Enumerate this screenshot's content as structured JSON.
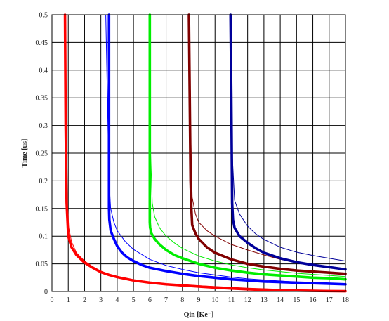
{
  "chart_data": {
    "type": "line",
    "title": "",
    "xlabel": "Qin [Ke⁻]",
    "ylabel": "Time [us]",
    "xlim": [
      0,
      18
    ],
    "ylim": [
      0,
      0.5
    ],
    "x_ticks": [
      0,
      1,
      2,
      3,
      4,
      5,
      6,
      7,
      8,
      9,
      10,
      11,
      12,
      13,
      14,
      15,
      16,
      17,
      18
    ],
    "y_ticks": [
      0,
      0.05,
      0.1,
      0.15,
      0.2,
      0.25,
      0.3,
      0.35,
      0.4,
      0.45,
      0.5
    ],
    "y_tick_labels": [
      "0",
      "0.05",
      "0.1",
      "0.15",
      "0.2",
      "0.25",
      "0.3",
      "0.35",
      "0.4",
      "0.45",
      "0.5"
    ],
    "grid": true,
    "legend": "none",
    "series": [
      {
        "color": "#ff0000",
        "width": "thick",
        "x": [
          0.8,
          0.82,
          0.84,
          0.86,
          0.88,
          0.9,
          0.95,
          1.0,
          1.2,
          1.5,
          2.0,
          2.5,
          3.0,
          3.5,
          4.0,
          5,
          6,
          7,
          8,
          9,
          10,
          11,
          12,
          13,
          14,
          15,
          16,
          17,
          18
        ],
        "y": [
          0.5,
          0.4,
          0.3,
          0.25,
          0.2,
          0.16,
          0.13,
          0.1,
          0.08,
          0.066,
          0.052,
          0.043,
          0.035,
          0.03,
          0.026,
          0.02,
          0.016,
          0.013,
          0.011,
          0.009,
          0.007,
          0.0055,
          0.004,
          0.003,
          0.0022,
          0.0016,
          0.0012,
          0.0008,
          0.0005
        ]
      },
      {
        "color": "#ff0000",
        "width": "thin",
        "x": [
          0.8,
          0.82,
          0.85,
          0.9,
          1.0,
          1.2,
          1.5,
          2.0,
          2.5,
          3.0,
          3.5,
          4.0,
          5,
          6,
          7,
          8,
          10,
          12,
          14,
          16,
          18
        ],
        "y": [
          0.5,
          0.35,
          0.25,
          0.17,
          0.12,
          0.09,
          0.07,
          0.055,
          0.045,
          0.037,
          0.031,
          0.027,
          0.021,
          0.017,
          0.014,
          0.012,
          0.009,
          0.006,
          0.004,
          0.0025,
          0.0015
        ]
      },
      {
        "color": "#0000ff",
        "width": "thick",
        "x": [
          3.5,
          3.5,
          3.52,
          3.6,
          3.8,
          4.0,
          4.3,
          4.6,
          5,
          5.5,
          6,
          7,
          8,
          9,
          10,
          11,
          12,
          13,
          14,
          15,
          16,
          17,
          18
        ],
        "y": [
          0.5,
          0.15,
          0.13,
          0.11,
          0.095,
          0.082,
          0.07,
          0.062,
          0.055,
          0.048,
          0.043,
          0.037,
          0.032,
          0.028,
          0.025,
          0.022,
          0.02,
          0.018,
          0.017,
          0.016,
          0.015,
          0.014,
          0.013
        ]
      },
      {
        "color": "#0000ff",
        "width": "thin",
        "x": [
          3.3,
          3.4,
          3.5,
          3.6,
          3.8,
          4.0,
          4.5,
          5,
          6,
          7,
          8,
          9,
          10,
          11,
          12,
          13,
          14,
          15,
          16,
          17,
          18
        ],
        "y": [
          0.5,
          0.35,
          0.2,
          0.15,
          0.125,
          0.11,
          0.09,
          0.076,
          0.058,
          0.047,
          0.04,
          0.034,
          0.03,
          0.026,
          0.023,
          0.021,
          0.019,
          0.017,
          0.016,
          0.015,
          0.014
        ]
      },
      {
        "color": "#00ee00",
        "width": "thick",
        "x": [
          6.0,
          6.0,
          6.02,
          6.1,
          6.3,
          6.6,
          7,
          7.5,
          8,
          9,
          10,
          11,
          12,
          13,
          14,
          15,
          16,
          17,
          18
        ],
        "y": [
          0.5,
          0.125,
          0.115,
          0.105,
          0.095,
          0.085,
          0.075,
          0.066,
          0.06,
          0.05,
          0.043,
          0.038,
          0.034,
          0.031,
          0.029,
          0.027,
          0.025,
          0.024,
          0.022
        ]
      },
      {
        "color": "#00ee00",
        "width": "thin",
        "x": [
          5.95,
          6.05,
          6.15,
          6.3,
          6.6,
          7,
          7.5,
          8,
          9,
          10,
          11,
          12,
          13,
          14,
          15,
          16,
          17,
          18
        ],
        "y": [
          0.5,
          0.25,
          0.16,
          0.135,
          0.115,
          0.1,
          0.088,
          0.078,
          0.064,
          0.055,
          0.048,
          0.043,
          0.039,
          0.036,
          0.033,
          0.031,
          0.029,
          0.027
        ]
      },
      {
        "color": "#800000",
        "width": "thick",
        "x": [
          8.4,
          8.45,
          8.5,
          8.55,
          8.6,
          8.8,
          9,
          9.5,
          10,
          11,
          12,
          13,
          14,
          15,
          16,
          17,
          18
        ],
        "y": [
          0.5,
          0.35,
          0.2,
          0.15,
          0.12,
          0.105,
          0.095,
          0.08,
          0.07,
          0.058,
          0.05,
          0.045,
          0.041,
          0.038,
          0.036,
          0.034,
          0.032
        ]
      },
      {
        "color": "#800000",
        "width": "thin",
        "x": [
          8.4,
          8.5,
          8.6,
          8.8,
          9,
          9.5,
          10,
          11,
          12,
          13,
          14,
          15,
          16,
          17,
          18
        ],
        "y": [
          0.5,
          0.3,
          0.17,
          0.14,
          0.125,
          0.11,
          0.1,
          0.085,
          0.075,
          0.066,
          0.058,
          0.053,
          0.048,
          0.044,
          0.041
        ]
      },
      {
        "color": "#000099",
        "width": "thick",
        "x": [
          10.95,
          11.0,
          11.05,
          11.1,
          11.2,
          11.5,
          12,
          12.5,
          13,
          14,
          15,
          16,
          17,
          18
        ],
        "y": [
          0.5,
          0.35,
          0.16,
          0.13,
          0.115,
          0.1,
          0.088,
          0.078,
          0.07,
          0.06,
          0.053,
          0.048,
          0.044,
          0.04
        ]
      },
      {
        "color": "#000099",
        "width": "thin",
        "x": [
          10.95,
          11.05,
          11.2,
          11.5,
          12,
          12.5,
          13,
          14,
          15,
          16,
          17,
          18
        ],
        "y": [
          0.5,
          0.25,
          0.165,
          0.14,
          0.118,
          0.104,
          0.094,
          0.08,
          0.071,
          0.065,
          0.06,
          0.055
        ]
      }
    ]
  }
}
